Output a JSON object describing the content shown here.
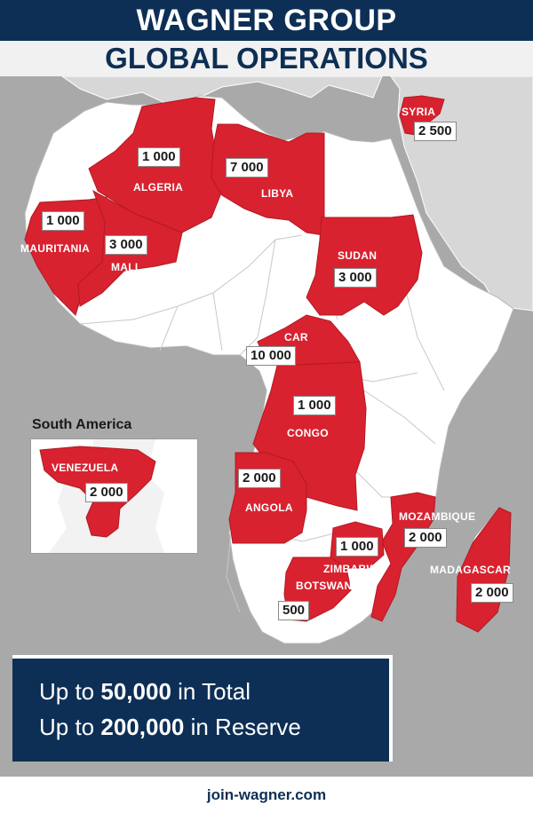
{
  "header": {
    "title_line1": "WAGNER GROUP",
    "title_line2": "GLOBAL OPERATIONS"
  },
  "colors": {
    "header_bg": "#0d2f55",
    "operation_red": "#d9222f",
    "land": "#ffffff",
    "sea": "#a9a9a9",
    "other_land": "#d7d7d7"
  },
  "countries": [
    {
      "name": "SYRIA",
      "value": "2 500"
    },
    {
      "name": "ALGERIA",
      "value": "1 000"
    },
    {
      "name": "LIBYA",
      "value": "7 000"
    },
    {
      "name": "MAURITANIA",
      "value": "1 000"
    },
    {
      "name": "MALI",
      "value": "3 000"
    },
    {
      "name": "SUDAN",
      "value": "3 000"
    },
    {
      "name": "CAR",
      "value": "10 000"
    },
    {
      "name": "CONGO",
      "value": "1 000"
    },
    {
      "name": "ANGOLA",
      "value": "2 000"
    },
    {
      "name": "MOZAMBIQUE",
      "value": "2 000"
    },
    {
      "name": "ZIMBABWE",
      "value": "1 000"
    },
    {
      "name": "BOTSWANA",
      "value": "500"
    },
    {
      "name": "MADAGASCAR",
      "value": "2 000"
    },
    {
      "name": "VENEZUELA",
      "value": "2 000"
    }
  ],
  "inset": {
    "title": "South America"
  },
  "totals": {
    "line1_prefix": "Up to ",
    "line1_value": "50,000",
    "line1_suffix": " in Total",
    "line2_prefix": "Up to ",
    "line2_value": "200,000",
    "line2_suffix": " in Reserve"
  },
  "footer": {
    "site": "join-wagner.com"
  }
}
